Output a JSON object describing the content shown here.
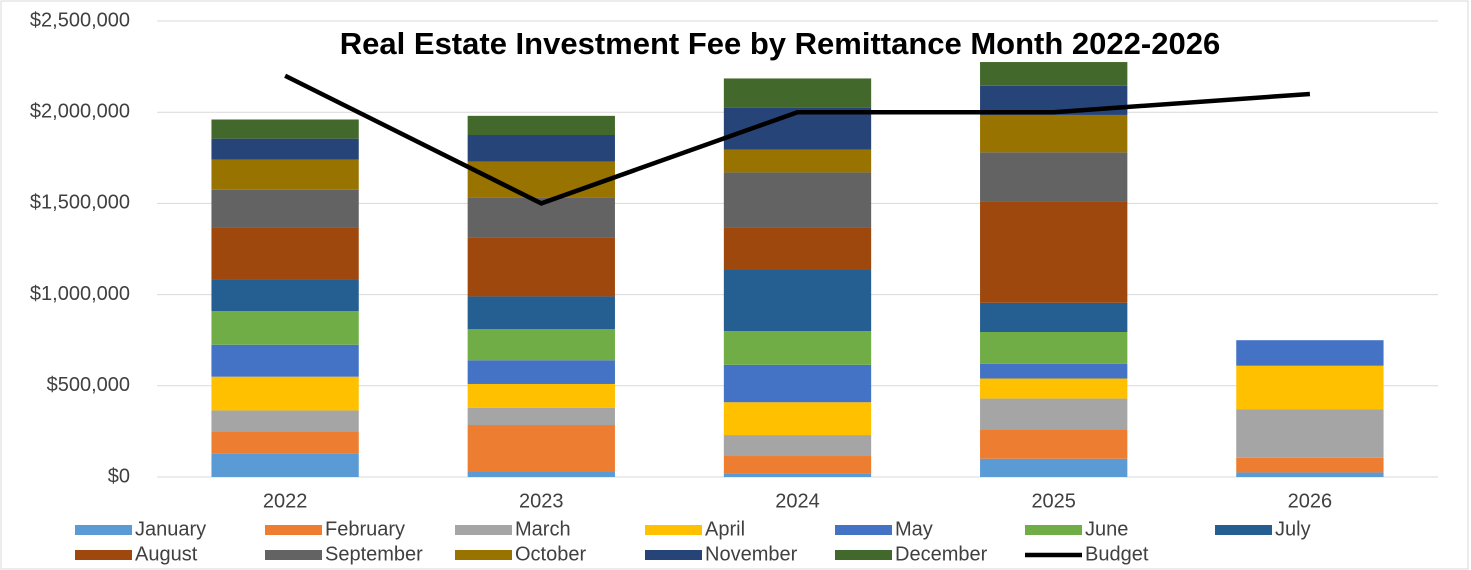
{
  "chart_data": {
    "type": "bar",
    "stacked": true,
    "title": "Real Estate Investment Fee by Remittance Month 2022-2026",
    "categories": [
      "2022",
      "2023",
      "2024",
      "2025",
      "2026"
    ],
    "ylim": [
      0,
      2500000
    ],
    "yticks": [
      {
        "value": 0,
        "label": "$0"
      },
      {
        "value": 500000,
        "label": "$500,000"
      },
      {
        "value": 1000000,
        "label": "$1,000,000"
      },
      {
        "value": 1500000,
        "label": "$1,500,000"
      },
      {
        "value": 2000000,
        "label": "$2,000,000"
      },
      {
        "value": 2500000,
        "label": "$2,500,000"
      }
    ],
    "grid": true,
    "legend": "bottom",
    "series": [
      {
        "name": "January",
        "color": "#5b9bd5",
        "values": [
          130000,
          30000,
          20000,
          100000,
          25000
        ]
      },
      {
        "name": "February",
        "color": "#ed7d31",
        "values": [
          120000,
          255000,
          95000,
          160000,
          80000
        ]
      },
      {
        "name": "March",
        "color": "#a5a5a5",
        "values": [
          115000,
          95000,
          115000,
          170000,
          265000
        ]
      },
      {
        "name": "April",
        "color": "#ffc000",
        "values": [
          185000,
          130000,
          180000,
          110000,
          240000
        ]
      },
      {
        "name": "May",
        "color": "#4472c4",
        "values": [
          175000,
          130000,
          205000,
          80000,
          140000
        ]
      },
      {
        "name": "June",
        "color": "#70ad47",
        "values": [
          185000,
          170000,
          185000,
          175000,
          null
        ]
      },
      {
        "name": "July",
        "color": "#255e91",
        "values": [
          175000,
          180000,
          340000,
          160000,
          null
        ]
      },
      {
        "name": "August",
        "color": "#9e480e",
        "values": [
          285000,
          325000,
          230000,
          555000,
          null
        ]
      },
      {
        "name": "September",
        "color": "#636363",
        "values": [
          205000,
          215000,
          300000,
          270000,
          null
        ]
      },
      {
        "name": "October",
        "color": "#997300",
        "values": [
          165000,
          200000,
          125000,
          205000,
          null
        ]
      },
      {
        "name": "November",
        "color": "#264478",
        "values": [
          115000,
          145000,
          230000,
          160000,
          null
        ]
      },
      {
        "name": "December",
        "color": "#43682b",
        "values": [
          105000,
          105000,
          160000,
          130000,
          null
        ]
      },
      {
        "name": "Budget",
        "color": "#000000",
        "type": "line",
        "values": [
          2200000,
          1500000,
          2000000,
          2000000,
          2100000
        ]
      }
    ]
  }
}
